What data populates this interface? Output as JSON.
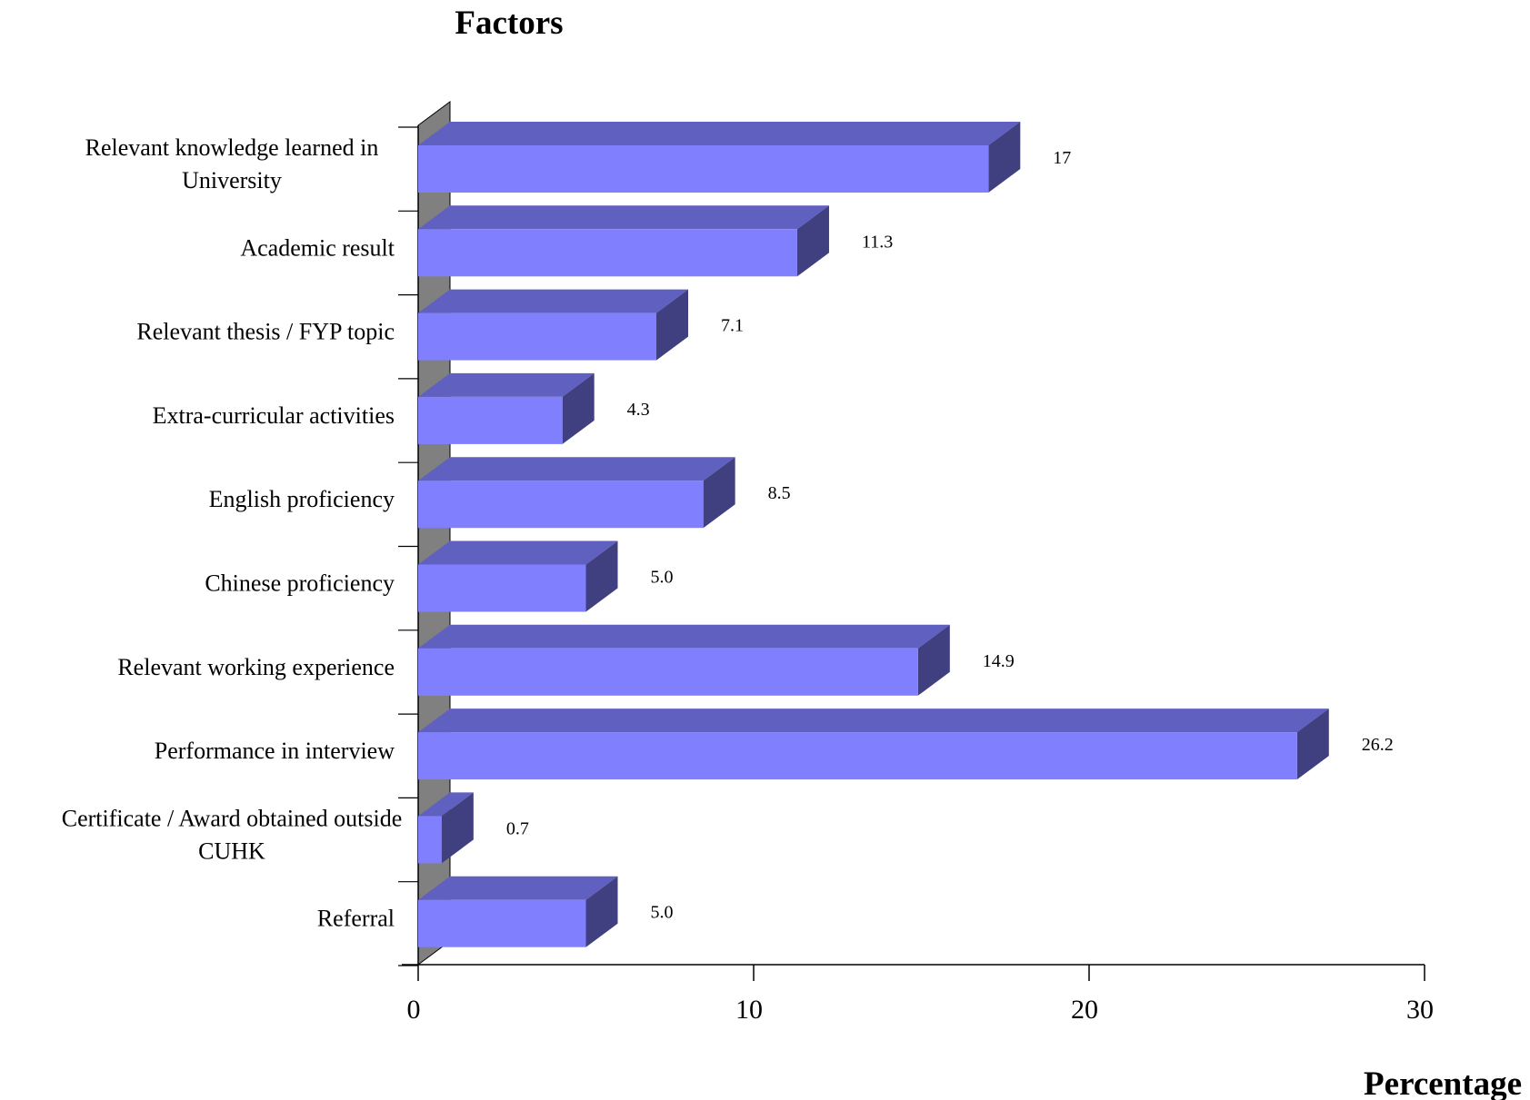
{
  "chart_data": {
    "type": "bar",
    "orientation": "horizontal",
    "style": "3d",
    "ylabel": "Factors",
    "xlabel": "Percentage",
    "xlim": [
      0,
      30
    ],
    "xticks": [
      0,
      10,
      20,
      30
    ],
    "grid": false,
    "categories": [
      "Relevant knowledge learned in University",
      "Academic result",
      "Relevant thesis / FYP topic",
      "Extra-curricular activities",
      "English proficiency",
      "Chinese proficiency",
      "Relevant working experience",
      "Performance in interview",
      "Certificate / Award obtained outside CUHK",
      "Referral"
    ],
    "category_lines": [
      [
        "Relevant knowledge learned in",
        "University"
      ],
      [
        "Academic result"
      ],
      [
        "Relevant thesis / FYP topic"
      ],
      [
        "Extra-curricular activities"
      ],
      [
        "English proficiency"
      ],
      [
        "Chinese proficiency"
      ],
      [
        "Relevant working experience"
      ],
      [
        "Performance in interview"
      ],
      [
        "Certificate / Award obtained outside",
        "CUHK"
      ],
      [
        "Referral"
      ]
    ],
    "values": [
      17,
      11.3,
      7.1,
      4.3,
      8.5,
      5.0,
      14.9,
      26.2,
      0.7,
      5.0
    ],
    "value_labels": [
      "17",
      "11.3",
      "7.1",
      "4.3",
      "8.5",
      "5.0",
      "14.9",
      "26.2",
      "0.7",
      "5.0"
    ],
    "colors": {
      "bar_front": "#8080ff",
      "bar_top": "#6060c0",
      "bar_side": "#404080",
      "wall": "#808080",
      "axis": "#000000"
    }
  }
}
